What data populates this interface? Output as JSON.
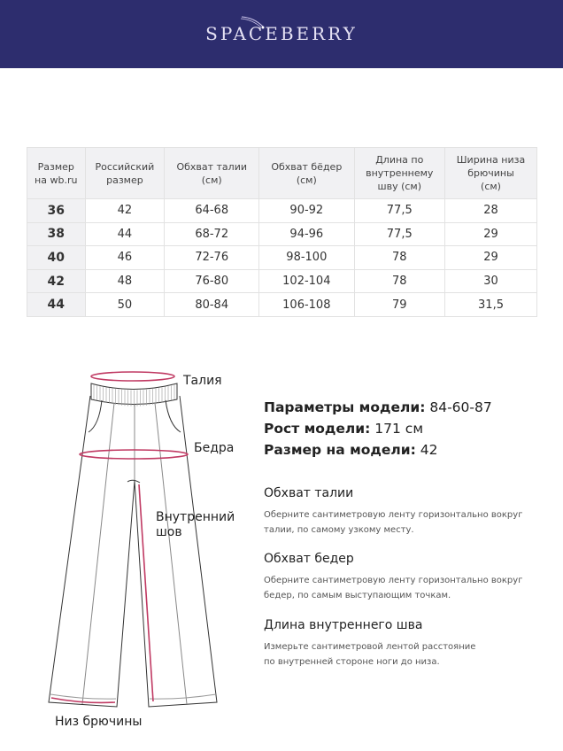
{
  "brand": {
    "logo": "SPACEBERRY",
    "header_color": "#2d2d6e"
  },
  "table": {
    "headers": [
      "Размер\nна wb.ru",
      "Российский\nразмер",
      "Обхват талии\n(см)",
      "Обхват бёдер\n(см)",
      "Длина по\nвнутреннему\nшву (см)",
      "Ширина низа\nбрючины\n(см)"
    ],
    "rows": [
      [
        "36",
        "42",
        "64-68",
        "90-92",
        "77,5",
        "28"
      ],
      [
        "38",
        "44",
        "68-72",
        "94-96",
        "77,5",
        "29"
      ],
      [
        "40",
        "46",
        "72-76",
        "98-100",
        "78",
        "29"
      ],
      [
        "42",
        "48",
        "76-80",
        "102-104",
        "78",
        "30"
      ],
      [
        "44",
        "50",
        "80-84",
        "106-108",
        "79",
        "31,5"
      ]
    ]
  },
  "diagram": {
    "accent": "#c03a63",
    "labels": {
      "waist": "Талия",
      "hips": "Бедра",
      "inseam": "Внутренний\nшов",
      "hem": "Низ брючины"
    }
  },
  "model": {
    "params_label": "Параметры модели:",
    "params_value": "84-60-87",
    "height_label": "Рост модели:",
    "height_value": "171 см",
    "size_label": "Размер на модели:",
    "size_value": "42"
  },
  "instructions": [
    {
      "title": "Обхват талии",
      "text": "Оберните сантиметровую ленту горизонтально вокруг\nталии, по самому узкому месту."
    },
    {
      "title": "Обхват бедер",
      "text": "Оберните сантиметровую ленту горизонтально вокруг\nбедер, по самым выступающим точкам."
    },
    {
      "title": "Длина внутреннего шва",
      "text": "Измерьте сантиметровой лентой расстояние\nпо внутренней стороне ноги до низа."
    }
  ]
}
